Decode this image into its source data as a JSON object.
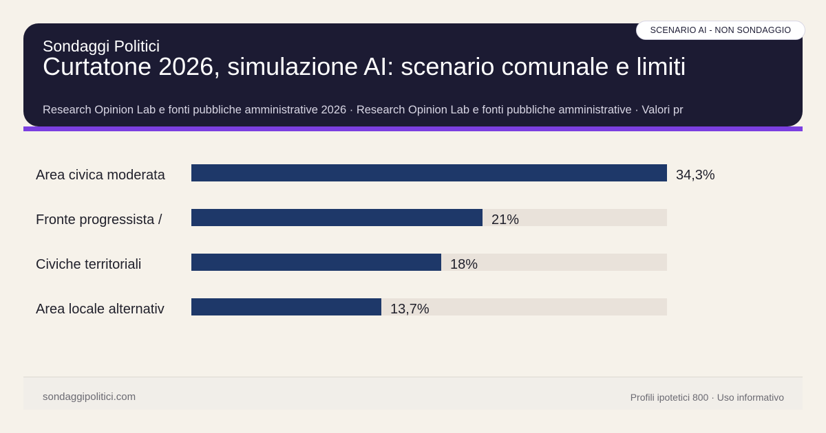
{
  "header": {
    "brand": "Sondaggi Politici",
    "title": "Curtatone 2026, simulazione AI: scenario comunale e limiti",
    "subtitle": "Research Opinion Lab e fonti pubbliche amministrative 2026 · Research Opinion Lab e fonti pubbliche amministrative · Valori pr",
    "badge": "SCENARIO AI - NON SONDAGGIO"
  },
  "chart_data": {
    "type": "bar",
    "orientation": "horizontal",
    "categories": [
      "Area civica moderata",
      "Fronte progressista /",
      "Civiche territoriali",
      "Area locale alternativ"
    ],
    "values": [
      34.3,
      21,
      18,
      13.7
    ],
    "value_labels": [
      "34,3%",
      "21%",
      "18%",
      "13,7%"
    ],
    "xlim": [
      0,
      34.3
    ],
    "title": "",
    "xlabel": "",
    "ylabel": "",
    "grid": false,
    "colors": {
      "bar": "#1e3869",
      "track": "#e9e2da"
    }
  },
  "footer": {
    "site": "sondaggipolitici.com",
    "note": "Profili ipotetici 800 · Uso informativo"
  },
  "colors": {
    "background": "#f6f2ea",
    "header": "#1c1b33",
    "accent": "#7b3fe0"
  }
}
